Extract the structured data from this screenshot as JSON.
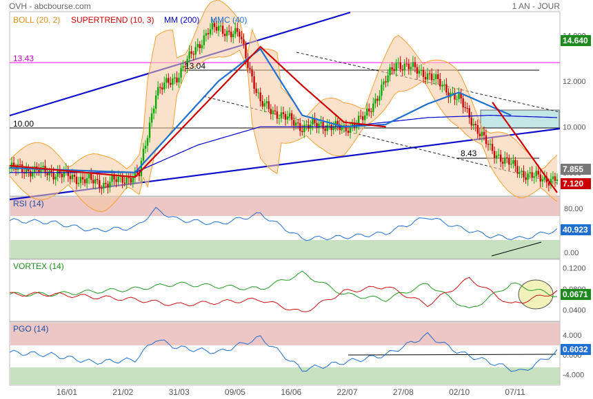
{
  "header": {
    "title": "OVH - abcbourse.com",
    "period": "1 AN - JOUR"
  },
  "legend": {
    "boll": "BOLL (20, 2)",
    "supertrend": "SUPERTREND (10, 3)",
    "mm": "MM (200)",
    "mmc": "MMC (40)"
  },
  "colors": {
    "candle_up": "#00aa00",
    "candle_down": "#cc0000",
    "boll": "#f5a030",
    "supertrend": "#cc0000",
    "mm200": "#0000cc",
    "mmc40": "#1e6fd0",
    "trend_line": "#1010cc",
    "magenta": "#ff00ff"
  },
  "x_ticks": [
    "16/01",
    "21/02",
    "31/03",
    "09/05",
    "16/06",
    "22/07",
    "27/08",
    "02/10",
    "07/11"
  ],
  "chart_data": [
    {
      "type": "line",
      "panel": "price",
      "title": "OVH",
      "y_ticks": [
        8.0,
        10.0,
        12.0,
        14.0
      ],
      "ylim": [
        7.0,
        15.0
      ],
      "levels": [
        {
          "value": 13.43,
          "label": "13.43"
        },
        {
          "value": 13.04,
          "label": "13.04"
        },
        {
          "value": 10.0,
          "label": "10.00"
        },
        {
          "value": 8.43,
          "label": "8.43"
        }
      ],
      "badges": {
        "price_high": "14.640",
        "last_price": "7.855",
        "supertrend_value": "7.120"
      },
      "x_days": [
        0,
        20,
        45,
        62,
        70,
        80,
        95,
        100,
        110,
        120,
        140,
        150,
        160,
        170,
        185,
        200,
        215,
        230,
        245,
        255,
        270,
        280,
        290,
        300,
        310
      ],
      "close": [
        8.2,
        8.0,
        7.5,
        7.9,
        11.5,
        12.2,
        14.2,
        14.3,
        14.0,
        11.0,
        10.0,
        10.1,
        9.9,
        10.4,
        12.8,
        12.3,
        11.2,
        9.0,
        8.0,
        7.7,
        7.8,
        null,
        null,
        null,
        null
      ],
      "series": [
        {
          "name": "MM (200)",
          "x": [
            0,
            60,
            90,
            120,
            160,
            200,
            230,
            262
          ],
          "values": [
            8.0,
            8.0,
            9.2,
            10.0,
            10.0,
            10.4,
            10.5,
            10.4
          ]
        },
        {
          "name": "MMC (40)",
          "x": [
            0,
            60,
            80,
            100,
            120,
            140,
            160,
            180,
            200,
            215,
            240
          ],
          "values": [
            8.2,
            8.0,
            10.0,
            12.0,
            13.4,
            10.5,
            10.0,
            10.1,
            11.0,
            11.5,
            10.5
          ]
        },
        {
          "name": "SUPERTREND (10, 3)",
          "x": [
            0,
            60,
            120,
            140,
            160,
            180,
            200,
            215,
            230,
            245,
            262
          ],
          "values": [
            8.3,
            7.8,
            13.5,
            11.8,
            10.2,
            10.0,
            null,
            null,
            11.2,
            9.3,
            7.12
          ]
        }
      ]
    },
    {
      "type": "line",
      "panel": "rsi",
      "title": "RSI (14)",
      "y_ticks": [
        0,
        40,
        80
      ],
      "levels": [
        70,
        30
      ],
      "last_value": "40.923",
      "x": [
        0,
        20,
        40,
        60,
        70,
        80,
        100,
        120,
        140,
        160,
        180,
        200,
        215,
        230,
        245,
        262
      ],
      "values": [
        58,
        55,
        40,
        45,
        78,
        60,
        52,
        70,
        25,
        28,
        35,
        65,
        45,
        30,
        25,
        41
      ]
    },
    {
      "type": "line",
      "panel": "vortex",
      "title": "VORTEX (14)",
      "y_ticks": [
        0.04,
        0.08,
        0.12
      ],
      "last_value": "0.0671",
      "series": [
        {
          "name": "VI+",
          "x": [
            0,
            20,
            40,
            60,
            80,
            100,
            120,
            140,
            160,
            180,
            200,
            220,
            240,
            262
          ],
          "values": [
            0.07,
            0.07,
            0.075,
            0.08,
            0.09,
            0.085,
            0.08,
            0.11,
            0.07,
            0.06,
            0.09,
            0.04,
            0.09,
            0.0671
          ]
        },
        {
          "name": "VI-",
          "x": [
            0,
            20,
            40,
            60,
            80,
            100,
            120,
            140,
            160,
            180,
            200,
            220,
            240,
            262
          ],
          "values": [
            0.07,
            0.07,
            0.065,
            0.06,
            0.05,
            0.055,
            0.06,
            0.035,
            0.075,
            0.085,
            0.05,
            0.1,
            0.05,
            0.075
          ]
        }
      ]
    },
    {
      "type": "line",
      "panel": "pgo",
      "title": "PGO (14)",
      "y_ticks": [
        -4,
        0,
        4
      ],
      "last_value": "0.6032",
      "x": [
        0,
        20,
        40,
        60,
        70,
        80,
        100,
        120,
        140,
        160,
        180,
        200,
        215,
        230,
        245,
        262
      ],
      "values": [
        0.5,
        0.0,
        -1.5,
        -1.0,
        3.2,
        1.5,
        0.5,
        3.5,
        -3.0,
        -1.5,
        0.0,
        4.0,
        0.5,
        -1.5,
        -3.5,
        0.6
      ]
    }
  ]
}
